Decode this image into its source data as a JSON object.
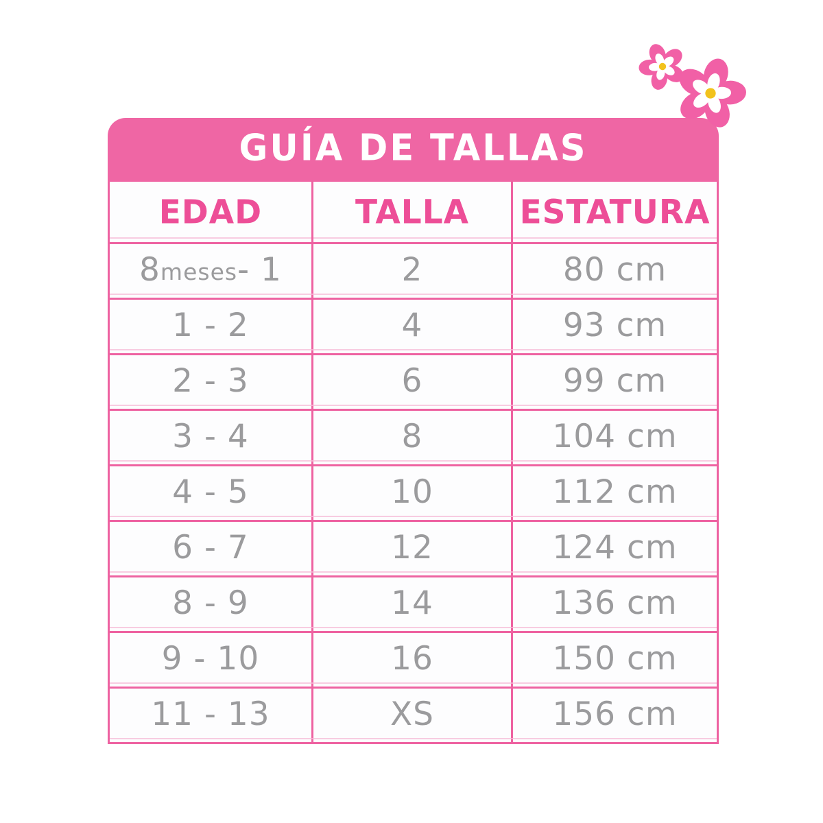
{
  "title": "GUÍA DE TALLAS",
  "table": {
    "columns": [
      "EDAD",
      "TALLA",
      "ESTATURA"
    ],
    "rows": [
      [
        "8 meses - 1",
        "2",
        "80 cm"
      ],
      [
        "1 - 2",
        "4",
        "93 cm"
      ],
      [
        "2 - 3",
        "6",
        "99 cm"
      ],
      [
        "3 - 4",
        "8",
        "104 cm"
      ],
      [
        "4 - 5",
        "10",
        "112 cm"
      ],
      [
        "6 - 7",
        "12",
        "124 cm"
      ],
      [
        "8 - 9",
        "14",
        "136 cm"
      ],
      [
        "9 - 10",
        "16",
        "150 cm"
      ],
      [
        "11 - 13",
        "XS",
        "156 cm"
      ]
    ]
  },
  "chart_data": {
    "type": "table",
    "title": "GUÍA DE TALLAS",
    "columns": [
      "EDAD",
      "TALLA",
      "ESTATURA"
    ],
    "rows": [
      [
        "8 meses - 1",
        "2",
        "80 cm"
      ],
      [
        "1 - 2",
        "4",
        "93 cm"
      ],
      [
        "2 - 3",
        "6",
        "99 cm"
      ],
      [
        "3 - 4",
        "8",
        "104 cm"
      ],
      [
        "4 - 5",
        "10",
        "112 cm"
      ],
      [
        "6 - 7",
        "12",
        "124 cm"
      ],
      [
        "8 - 9",
        "14",
        "136 cm"
      ],
      [
        "9 - 10",
        "16",
        "150 cm"
      ],
      [
        "11 - 13",
        "XS",
        "156 cm"
      ]
    ],
    "estatura_cm": [
      80,
      93,
      99,
      104,
      112,
      124,
      136,
      150,
      156
    ]
  },
  "icons": {
    "flower_large": "flower-icon",
    "flower_small": "flower-icon"
  },
  "colors": {
    "header_bar": "#ef66a4",
    "border_pink": "#ee62a1",
    "header_text_pink": "#ed4e97",
    "body_text_gray": "#9b9b9d",
    "flower_pink": "#f160a6",
    "flower_center_yellow": "#f2c21c",
    "background": "#ffffff"
  }
}
